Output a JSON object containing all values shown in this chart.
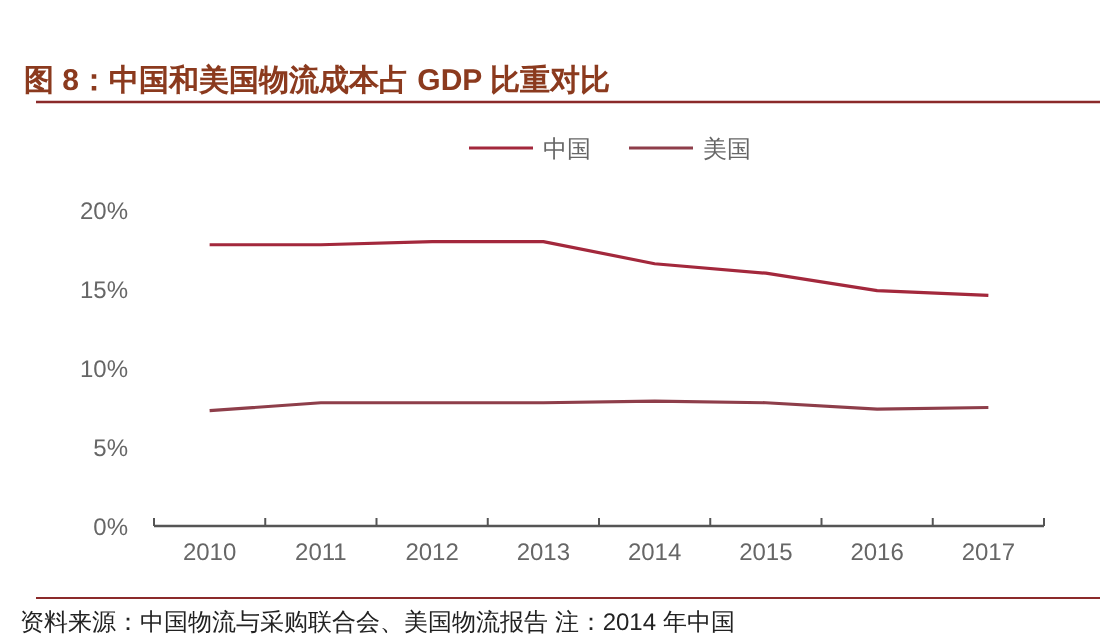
{
  "chart_data": {
    "type": "line",
    "title": "图 8：中国和美国物流成本占 GDP 比重对比",
    "categories": [
      "2010",
      "2011",
      "2012",
      "2013",
      "2014",
      "2015",
      "2016",
      "2017"
    ],
    "series": [
      {
        "name": "中国",
        "color": "#a3283c",
        "values": [
          17.8,
          17.8,
          18.0,
          18.0,
          16.6,
          16.0,
          14.9,
          14.6
        ]
      },
      {
        "name": "美国",
        "color": "#8e3e4a",
        "values": [
          7.3,
          7.8,
          7.8,
          7.8,
          7.9,
          7.8,
          7.4,
          7.5
        ]
      }
    ],
    "ylim": [
      0,
      20
    ],
    "yticks": [
      {
        "value": 0,
        "label": "0%"
      },
      {
        "value": 5,
        "label": "5%"
      },
      {
        "value": 10,
        "label": "10%"
      },
      {
        "value": 15,
        "label": "15%"
      },
      {
        "value": 20,
        "label": "20%"
      }
    ],
    "legend": "top",
    "grid": false,
    "annotations": [
      "资料来源：中国物流与采购联合会、美国物流报告 注：2014 年中国"
    ]
  }
}
